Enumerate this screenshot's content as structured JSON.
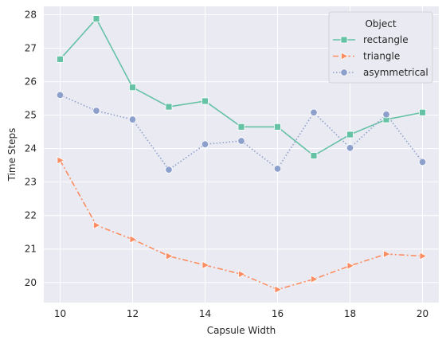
{
  "chart_data": {
    "type": "line",
    "title": "",
    "xlabel": "Capsule Width",
    "ylabel": "Time Steps",
    "xlim": [
      9.55,
      20.45
    ],
    "ylim": [
      19.4,
      28.25
    ],
    "xticks": [
      10,
      12,
      14,
      16,
      18,
      20
    ],
    "yticks": [
      20,
      21,
      22,
      23,
      24,
      25,
      26,
      27,
      28
    ],
    "grid": true,
    "legend": {
      "title": "Object",
      "position": "top-right"
    },
    "x": [
      10,
      11,
      12,
      13,
      14,
      15,
      16,
      17,
      18,
      19,
      20
    ],
    "series": [
      {
        "name": "rectangle",
        "color": "#66c2a5",
        "marker": "square",
        "dash": "solid",
        "values": [
          26.67,
          27.88,
          25.83,
          25.25,
          25.42,
          24.65,
          24.65,
          23.79,
          24.42,
          24.87,
          25.08
        ]
      },
      {
        "name": "triangle",
        "color": "#fc8d62",
        "marker": "triangle-right",
        "dash": "dashdot",
        "values": [
          23.65,
          21.71,
          21.29,
          20.79,
          20.52,
          20.25,
          19.79,
          20.1,
          20.5,
          20.85,
          20.79
        ]
      },
      {
        "name": "asymmetrical",
        "color": "#8da0cb",
        "marker": "circle",
        "dash": "dotted",
        "values": [
          25.6,
          25.13,
          24.87,
          23.37,
          24.13,
          24.23,
          23.4,
          25.08,
          24.02,
          25.02,
          23.6
        ]
      }
    ]
  }
}
